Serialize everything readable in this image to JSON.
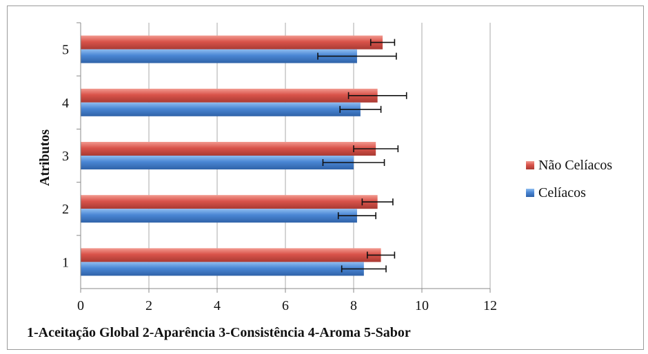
{
  "chart_data": {
    "type": "bar",
    "orientation": "horizontal",
    "title": "",
    "xlabel": "",
    "ylabel": "Atributos",
    "caption": "1-Aceitação Global 2-Aparência 3-Consistência 4-Aroma 5-Sabor",
    "categories": [
      "1",
      "2",
      "3",
      "4",
      "5"
    ],
    "xlim": [
      0,
      12
    ],
    "xticks": [
      0,
      2,
      4,
      6,
      8,
      10,
      12
    ],
    "grid": "vertical",
    "legend_position": "right",
    "series": [
      {
        "name": "Não Celíacos",
        "color": "#d9534a",
        "values": [
          8.8,
          8.7,
          8.65,
          8.7,
          8.85
        ],
        "errors": [
          0.4,
          0.45,
          0.65,
          0.85,
          0.35
        ]
      },
      {
        "name": "Celíacos",
        "color": "#4a86d4",
        "values": [
          8.3,
          8.1,
          8.0,
          8.2,
          8.1
        ],
        "errors": [
          0.65,
          0.55,
          0.9,
          0.6,
          1.15
        ]
      }
    ]
  }
}
